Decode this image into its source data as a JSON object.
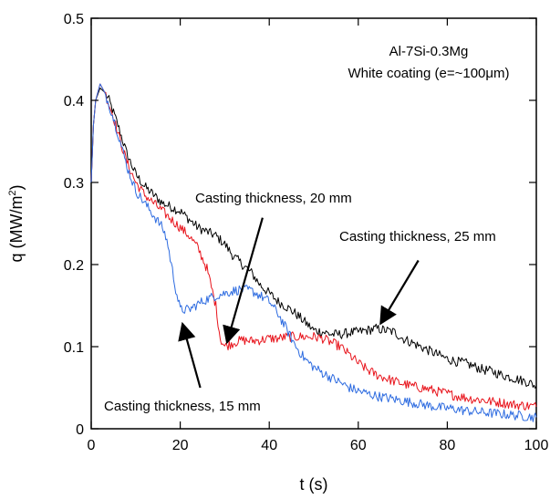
{
  "chart_data": {
    "type": "line",
    "title": "",
    "xlabel": "t (s)",
    "ylabel_main": "q (MW/m",
    "ylabel_sup": "2",
    "ylabel_end": ")",
    "xlim": [
      0,
      100
    ],
    "ylim": [
      0,
      0.5
    ],
    "x_ticks": [
      0,
      20,
      40,
      60,
      80,
      100
    ],
    "y_ticks": [
      0,
      0.1,
      0.2,
      0.3,
      0.4,
      0.5
    ],
    "x_tick_labels": [
      "0",
      "20",
      "40",
      "60",
      "80",
      "100"
    ],
    "y_tick_labels": [
      "0",
      "0.1",
      "0.2",
      "0.3",
      "0.4",
      "0.5"
    ],
    "grid": false,
    "legend": "none",
    "annotations": {
      "alloy": "Al-7Si-0.3Mg",
      "coating": "White coating (e=~100μm)",
      "label_20": "Casting thickness, 20 mm",
      "label_25": "Casting thickness, 25 mm",
      "label_15": "Casting thickness, 15 mm"
    },
    "series": [
      {
        "color": "#000000",
        "x": [
          0,
          0.5,
          1,
          2,
          3,
          4,
          5,
          6,
          8,
          10,
          12,
          14,
          16,
          18,
          20,
          22,
          24,
          26,
          28,
          30,
          32,
          34,
          36,
          38,
          40,
          42,
          44,
          46,
          48,
          50,
          52,
          54,
          56,
          58,
          60,
          62,
          64,
          66,
          68,
          70,
          72,
          74,
          76,
          78,
          80,
          82,
          84,
          86,
          88,
          90,
          92,
          94,
          96,
          98,
          100
        ],
        "y": [
          0.3,
          0.37,
          0.4,
          0.415,
          0.41,
          0.4,
          0.385,
          0.37,
          0.335,
          0.31,
          0.295,
          0.285,
          0.275,
          0.27,
          0.265,
          0.255,
          0.245,
          0.24,
          0.235,
          0.225,
          0.21,
          0.2,
          0.19,
          0.175,
          0.165,
          0.155,
          0.148,
          0.14,
          0.13,
          0.12,
          0.118,
          0.115,
          0.115,
          0.117,
          0.118,
          0.12,
          0.122,
          0.12,
          0.118,
          0.11,
          0.105,
          0.1,
          0.095,
          0.09,
          0.085,
          0.082,
          0.08,
          0.076,
          0.072,
          0.07,
          0.066,
          0.063,
          0.06,
          0.057,
          0.052
        ]
      },
      {
        "color": "#e8141c",
        "x": [
          0,
          0.5,
          1,
          2,
          3,
          4,
          5,
          6,
          8,
          10,
          12,
          14,
          16,
          18,
          20,
          22,
          24,
          26,
          28,
          29,
          30,
          32,
          34,
          36,
          38,
          40,
          42,
          44,
          46,
          48,
          50,
          52,
          54,
          56,
          58,
          60,
          62,
          64,
          66,
          68,
          70,
          72,
          74,
          76,
          78,
          80,
          82,
          84,
          86,
          88,
          90,
          92,
          94,
          96,
          98,
          100
        ],
        "y": [
          0.3,
          0.37,
          0.4,
          0.42,
          0.41,
          0.395,
          0.38,
          0.36,
          0.325,
          0.3,
          0.285,
          0.275,
          0.265,
          0.255,
          0.245,
          0.235,
          0.22,
          0.195,
          0.15,
          0.11,
          0.1,
          0.105,
          0.108,
          0.107,
          0.108,
          0.11,
          0.11,
          0.112,
          0.112,
          0.112,
          0.112,
          0.11,
          0.105,
          0.1,
          0.09,
          0.08,
          0.072,
          0.066,
          0.062,
          0.058,
          0.055,
          0.052,
          0.05,
          0.048,
          0.045,
          0.043,
          0.04,
          0.038,
          0.036,
          0.035,
          0.033,
          0.032,
          0.03,
          0.029,
          0.028,
          0.027
        ]
      },
      {
        "color": "#2d6be0",
        "x": [
          0,
          0.5,
          1,
          2,
          3,
          4,
          5,
          6,
          8,
          10,
          12,
          14,
          16,
          17,
          18,
          19,
          20,
          22,
          24,
          26,
          28,
          30,
          32,
          34,
          36,
          38,
          40,
          42,
          44,
          46,
          48,
          50,
          52,
          54,
          56,
          58,
          60,
          62,
          64,
          66,
          68,
          70,
          72,
          74,
          76,
          78,
          80,
          82,
          84,
          86,
          88,
          90,
          92,
          94,
          96,
          98,
          100
        ],
        "y": [
          0.3,
          0.37,
          0.4,
          0.42,
          0.41,
          0.395,
          0.378,
          0.36,
          0.32,
          0.29,
          0.275,
          0.26,
          0.245,
          0.23,
          0.2,
          0.17,
          0.145,
          0.145,
          0.152,
          0.158,
          0.162,
          0.165,
          0.168,
          0.17,
          0.168,
          0.162,
          0.155,
          0.14,
          0.12,
          0.1,
          0.085,
          0.075,
          0.068,
          0.062,
          0.056,
          0.05,
          0.046,
          0.043,
          0.04,
          0.038,
          0.036,
          0.034,
          0.032,
          0.03,
          0.028,
          0.026,
          0.025,
          0.024,
          0.022,
          0.021,
          0.02,
          0.019,
          0.018,
          0.017,
          0.016,
          0.015,
          0.014
        ]
      }
    ],
    "arrows": [
      {
        "label": "label_20",
        "from": [
          38.5,
          0.257
        ],
        "to": [
          30.5,
          0.105
        ]
      },
      {
        "label": "label_25",
        "from": [
          73.5,
          0.205
        ],
        "to": [
          65,
          0.128
        ]
      },
      {
        "label": "label_15",
        "from": [
          24.5,
          0.05
        ],
        "to": [
          20.5,
          0.128
        ]
      }
    ]
  }
}
